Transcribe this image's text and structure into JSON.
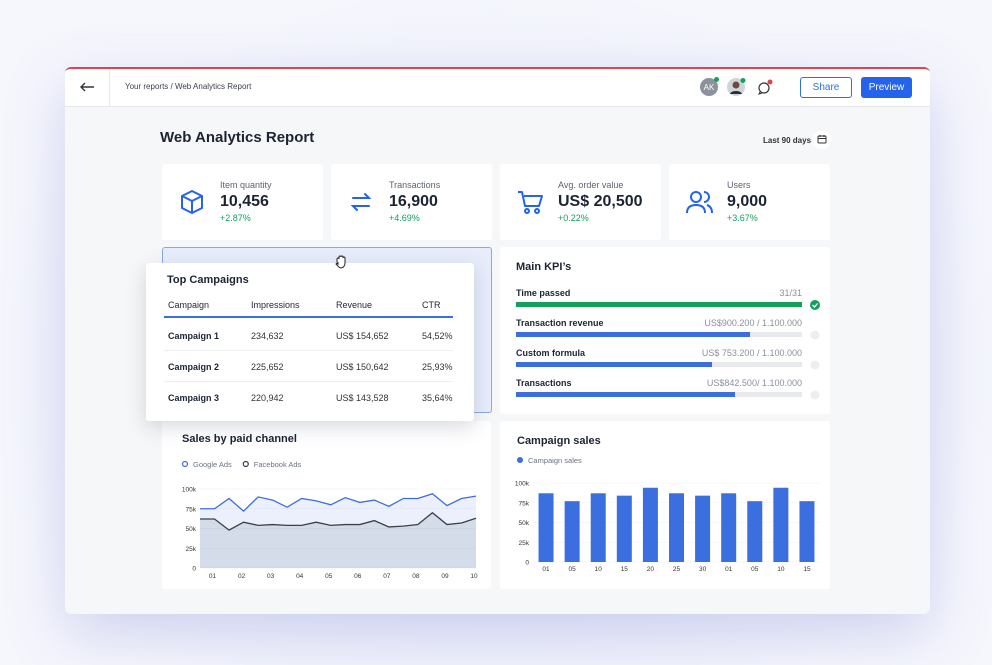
{
  "header": {
    "breadcrumb": "Your reports / Web Analytics Report",
    "avatar_initials": "AK",
    "share": "Share",
    "preview": "Preview"
  },
  "report": {
    "title": "Web Analytics Report",
    "date_range": "Last 90 days"
  },
  "kpis": [
    {
      "label": "Item quantity",
      "value": "10,456",
      "change": "+2.87%"
    },
    {
      "label": "Transactions",
      "value": "16,900",
      "change": "+4.69%"
    },
    {
      "label": "Avg. order value",
      "value": "US$ 20,500",
      "change": "+0.22%"
    },
    {
      "label": "Users",
      "value": "9,000",
      "change": "+3.67%"
    }
  ],
  "top_campaigns": {
    "title": "Top Campaigns",
    "columns": [
      "Campaign",
      "Impressions",
      "Revenue",
      "CTR"
    ],
    "rows": [
      [
        "Campaign 1",
        "234,632",
        "US$ 154,652",
        "54,52%"
      ],
      [
        "Campaign 2",
        "225,652",
        "US$ 150,642",
        "25,93%"
      ],
      [
        "Campaign 3",
        "220,942",
        "US$ 143,528",
        "35,64%"
      ]
    ]
  },
  "main_kpis": {
    "title": "Main KPI’s",
    "rows": [
      {
        "label": "Time passed",
        "progress_label": "31/31",
        "value": 31,
        "target": 31
      },
      {
        "label": "Transaction revenue",
        "progress_label": "US$900.200 / 1.100.000",
        "value": 900200,
        "target": 1100000
      },
      {
        "label": "Custom formula",
        "progress_label": "US$ 753.200 / 1.100.000",
        "value": 753200,
        "target": 1100000
      },
      {
        "label": "Transactions",
        "progress_label": "US$842.500/ 1.100.000",
        "value": 842500,
        "target": 1100000
      }
    ]
  },
  "chart_data": [
    {
      "type": "line",
      "title": "Sales by paid channel",
      "categories": [
        null,
        "01",
        null,
        "02",
        null,
        "03",
        null,
        "04",
        null,
        "05",
        null,
        "06",
        null,
        "07",
        null,
        "08",
        null,
        "09",
        null,
        "10"
      ],
      "series": [
        {
          "name": "Google Ads",
          "color": "#3b6fe0",
          "values": [
            75,
            75,
            88,
            72,
            90,
            86,
            77,
            88,
            85,
            80,
            89,
            83,
            86,
            78,
            88,
            88,
            94,
            79,
            88,
            91
          ]
        },
        {
          "name": "Facebook Ads",
          "color": "#3a3f4b",
          "values": [
            62,
            62,
            48,
            58,
            54,
            55,
            54,
            54,
            58,
            54,
            55,
            55,
            60,
            52,
            53,
            55,
            70,
            55,
            57,
            63
          ]
        }
      ],
      "ylim": [
        0,
        100
      ],
      "yticks": [
        {
          "value": 0,
          "label": "0"
        },
        {
          "value": 25,
          "label": "25k"
        },
        {
          "value": 50,
          "label": "50k"
        },
        {
          "value": 75,
          "label": "75k"
        },
        {
          "value": 100,
          "label": "100k"
        }
      ]
    },
    {
      "type": "bar",
      "title": "Campaign sales",
      "categories": [
        "01",
        "05",
        "10",
        "15",
        "20",
        "25",
        "30",
        "01",
        "05",
        "10",
        "15"
      ],
      "series": [
        {
          "name": "Campaign sales",
          "color": "#3b6fe0",
          "values": [
            87,
            77,
            87,
            84,
            94,
            87,
            84,
            87,
            77,
            94,
            77
          ]
        }
      ],
      "ylim": [
        0,
        100
      ],
      "yticks": [
        {
          "value": 0,
          "label": "0"
        },
        {
          "value": 25,
          "label": "25k"
        },
        {
          "value": 50,
          "label": "50k"
        },
        {
          "value": 75,
          "label": "75k"
        },
        {
          "value": 100,
          "label": "100k"
        }
      ]
    }
  ]
}
